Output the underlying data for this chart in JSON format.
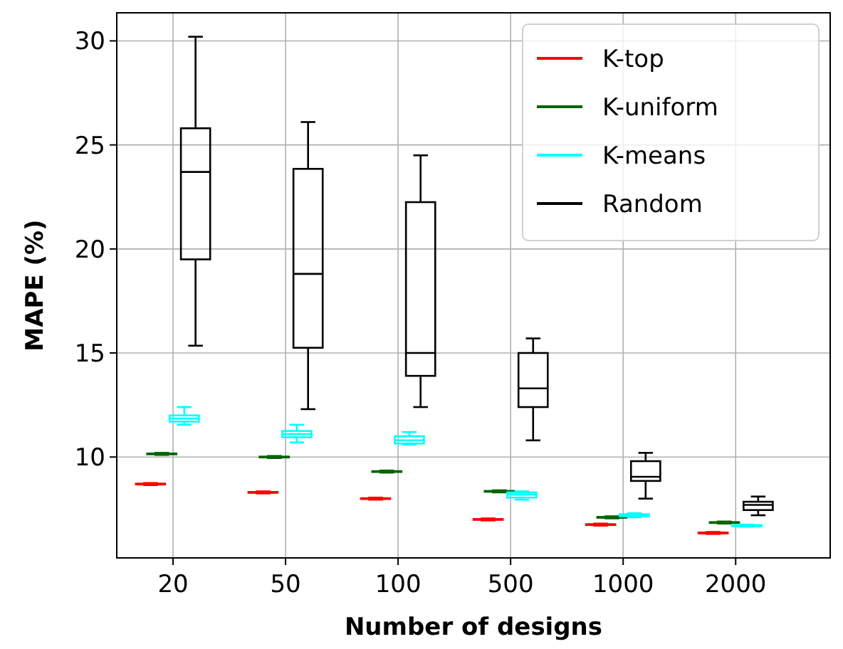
{
  "chart_data": {
    "type": "box",
    "xlabel": "Number of designs",
    "ylabel": "MAPE (%)",
    "categories": [
      "20",
      "50",
      "100",
      "500",
      "1000",
      "2000"
    ],
    "ylim": [
      5.15,
      31.35
    ],
    "yticks": [
      10,
      15,
      20,
      25,
      30
    ],
    "grid": true,
    "legend": "top right",
    "series": [
      {
        "name": "K-top",
        "color": "#ff0000",
        "boxes": [
          {
            "low": 8.65,
            "q1": 8.68,
            "median": 8.7,
            "q3": 8.72,
            "high": 8.75
          },
          {
            "low": 8.25,
            "q1": 8.28,
            "median": 8.3,
            "q3": 8.32,
            "high": 8.35
          },
          {
            "low": 7.95,
            "q1": 7.98,
            "median": 8.0,
            "q3": 8.02,
            "high": 8.05
          },
          {
            "low": 6.95,
            "q1": 6.98,
            "median": 7.0,
            "q3": 7.02,
            "high": 7.05
          },
          {
            "low": 6.7,
            "q1": 6.73,
            "median": 6.75,
            "q3": 6.77,
            "high": 6.8
          },
          {
            "low": 6.3,
            "q1": 6.33,
            "median": 6.35,
            "q3": 6.37,
            "high": 6.4
          }
        ]
      },
      {
        "name": "K-uniform",
        "color": "#006400",
        "boxes": [
          {
            "low": 10.1,
            "q1": 10.13,
            "median": 10.15,
            "q3": 10.17,
            "high": 10.2
          },
          {
            "low": 9.95,
            "q1": 9.98,
            "median": 10.0,
            "q3": 10.02,
            "high": 10.05
          },
          {
            "low": 9.25,
            "q1": 9.28,
            "median": 9.3,
            "q3": 9.32,
            "high": 9.35
          },
          {
            "low": 8.3,
            "q1": 8.33,
            "median": 8.35,
            "q3": 8.37,
            "high": 8.4
          },
          {
            "low": 7.05,
            "q1": 7.08,
            "median": 7.1,
            "q3": 7.12,
            "high": 7.15
          },
          {
            "low": 6.8,
            "q1": 6.83,
            "median": 6.85,
            "q3": 6.87,
            "high": 6.9
          }
        ]
      },
      {
        "name": "K-means",
        "color": "#00ffff",
        "boxes": [
          {
            "low": 11.55,
            "q1": 11.7,
            "median": 11.85,
            "q3": 12.0,
            "high": 12.4
          },
          {
            "low": 10.7,
            "q1": 10.95,
            "median": 11.1,
            "q3": 11.25,
            "high": 11.55
          },
          {
            "low": 10.6,
            "q1": 10.65,
            "median": 10.8,
            "q3": 11.0,
            "high": 11.2
          },
          {
            "low": 7.95,
            "q1": 8.05,
            "median": 8.2,
            "q3": 8.3,
            "high": 8.35
          },
          {
            "low": 7.1,
            "q1": 7.15,
            "median": 7.2,
            "q3": 7.25,
            "high": 7.3
          },
          {
            "low": 6.65,
            "q1": 6.67,
            "median": 6.7,
            "q3": 6.73,
            "high": 6.75
          }
        ]
      },
      {
        "name": "Random",
        "color": "#000000",
        "boxes": [
          {
            "low": 15.35,
            "q1": 19.5,
            "median": 23.7,
            "q3": 25.8,
            "high": 30.2
          },
          {
            "low": 12.3,
            "q1": 15.25,
            "median": 18.8,
            "q3": 23.85,
            "high": 26.1
          },
          {
            "low": 12.4,
            "q1": 13.9,
            "median": 15.0,
            "q3": 22.25,
            "high": 24.5
          },
          {
            "low": 10.8,
            "q1": 12.4,
            "median": 13.3,
            "q3": 15.0,
            "high": 15.7
          },
          {
            "low": 8.0,
            "q1": 8.85,
            "median": 9.05,
            "q3": 9.8,
            "high": 10.2
          },
          {
            "low": 7.2,
            "q1": 7.45,
            "median": 7.7,
            "q3": 7.85,
            "high": 8.1
          }
        ]
      }
    ]
  }
}
